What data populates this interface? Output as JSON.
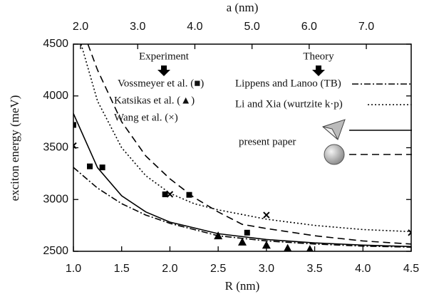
{
  "chart_data": {
    "type": "line",
    "xlabel": "R (nm)",
    "ylabel": "exciton energy (meV)",
    "x2label": "a (nm)",
    "xlim": [
      1.0,
      4.5
    ],
    "xticks": [
      {
        "value": 1,
        "label": "1.0"
      },
      {
        "value": 1.5,
        "label": "1.5"
      },
      {
        "value": 2,
        "label": "2.0"
      },
      {
        "value": 2.5,
        "label": "2.5"
      },
      {
        "value": 3,
        "label": "3.0"
      },
      {
        "value": 3.5,
        "label": "3.5"
      },
      {
        "value": 4,
        "label": "4.0"
      },
      {
        "value": 4.5,
        "label": "4.5"
      }
    ],
    "x2lim": [
      1.875,
      7.785
    ],
    "x2ticks": [
      {
        "value": 2,
        "label": "2.0"
      },
      {
        "value": 3,
        "label": "3.0"
      },
      {
        "value": 4,
        "label": "4.0"
      },
      {
        "value": 5,
        "label": "5.0"
      },
      {
        "value": 6,
        "label": "6.0"
      },
      {
        "value": 7,
        "label": "7.0"
      }
    ],
    "ylim": [
      2500,
      4500
    ],
    "yticks": [
      2500,
      3000,
      3500,
      4000,
      4500
    ],
    "grid": false,
    "experiment_heading": "Experiment",
    "theory_heading": "Theory",
    "present_label": "present paper",
    "series": [
      {
        "name": "Lippens and Lanoo (TB)",
        "kind": "line",
        "dash": "9,3,2,3",
        "color": "#000",
        "x": [
          1.0,
          1.25,
          1.5,
          1.75,
          2.0,
          2.5,
          3.0,
          3.5,
          4.0,
          4.5
        ],
        "values": [
          3310,
          3110,
          2960,
          2850,
          2770,
          2650,
          2600,
          2570,
          2550,
          2540
        ]
      },
      {
        "name": "Li and Xia (wurtzite k·p)",
        "kind": "line",
        "dash": "2,3",
        "color": "#000",
        "x": [
          1.08,
          1.25,
          1.5,
          1.75,
          2.0,
          2.25,
          2.5,
          3.0,
          3.5,
          4.0,
          4.5
        ],
        "values": [
          4500,
          3950,
          3500,
          3230,
          3060,
          2960,
          2900,
          2810,
          2750,
          2710,
          2690
        ]
      },
      {
        "kind": "line",
        "dash": "",
        "color": "#000",
        "x": [
          1.0,
          1.25,
          1.5,
          1.75,
          2.0,
          2.5,
          3.0,
          3.5,
          4.0,
          4.5
        ],
        "values": [
          3830,
          3307,
          3036,
          2880,
          2782,
          2670,
          2614,
          2581,
          2560,
          2546
        ]
      },
      {
        "kind": "line",
        "dash": "10,6",
        "color": "#000",
        "x": [
          1.15,
          1.25,
          1.5,
          1.75,
          2.0,
          2.25,
          2.5,
          2.75,
          3.0,
          3.5,
          4.0,
          4.5
        ],
        "values": [
          4500,
          4250,
          3750,
          3420,
          3200,
          3020,
          2880,
          2760,
          2720,
          2650,
          2600,
          2570
        ]
      },
      {
        "name": "Vossmeyer et al. (■)",
        "kind": "scatter",
        "marker": "square",
        "color": "#000",
        "x": [
          1.0,
          1.17,
          1.3,
          1.95,
          2.2,
          2.8
        ],
        "values": [
          3720,
          3320,
          3310,
          3050,
          3045,
          2680
        ]
      },
      {
        "name": "Katsikas et al. (▲)",
        "kind": "scatter",
        "marker": "triangle",
        "color": "#000",
        "x": [
          2.5,
          2.75,
          3.0,
          3.22,
          3.45
        ],
        "values": [
          2650,
          2590,
          2560,
          2530,
          2520
        ]
      },
      {
        "name": "Wang et al. (×)",
        "kind": "scatter",
        "marker": "cross",
        "color": "#000",
        "x": [
          1.0,
          2.0,
          3.0,
          4.5
        ],
        "values": [
          3520,
          3050,
          2850,
          2680
        ]
      }
    ]
  }
}
